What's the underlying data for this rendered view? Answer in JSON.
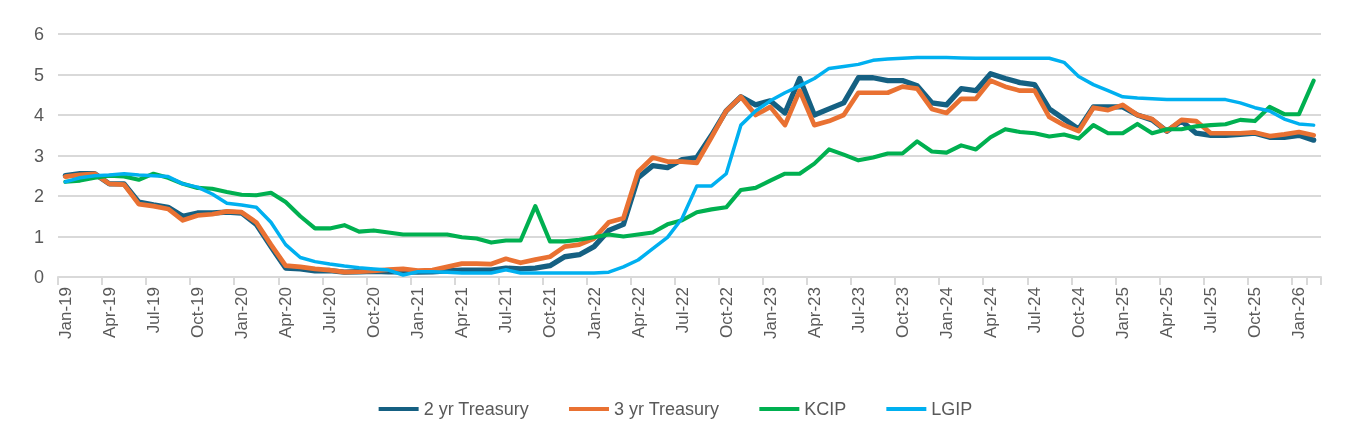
{
  "chart_data": {
    "type": "line",
    "categories": [
      "Jan-19",
      null,
      null,
      "Apr-19",
      null,
      null,
      "Jul-19",
      null,
      null,
      "Oct-19",
      null,
      null,
      "Jan-20",
      null,
      null,
      "Apr-20",
      null,
      null,
      "Jul-20",
      null,
      null,
      "Oct-20",
      null,
      null,
      "Jan-21",
      null,
      null,
      "Apr-21",
      null,
      null,
      "Jul-21",
      null,
      null,
      "Oct-21",
      null,
      null,
      "Jan-22",
      null,
      null,
      "Apr-22",
      null,
      null,
      "Jul-22",
      null,
      null,
      "Oct-22",
      null,
      null,
      "Jan-23",
      null,
      null,
      "Apr-23",
      null,
      null,
      "Jul-23",
      null,
      null,
      "Oct-23",
      null,
      null,
      "Jan-24",
      null,
      null,
      "Apr-24",
      null,
      null,
      "Jul-24",
      null,
      null,
      "Oct-24",
      null,
      null,
      "Jan-25",
      null,
      null,
      "Apr-25",
      null,
      null,
      "Jul-25",
      null,
      null,
      "Oct-25",
      null,
      null,
      "Jan-26",
      null
    ],
    "series": [
      {
        "name": "2 yr Treasury",
        "color": "#156082",
        "values": [
          2.5,
          2.55,
          2.55,
          2.3,
          2.3,
          1.85,
          1.78,
          1.72,
          1.5,
          1.58,
          1.58,
          1.6,
          1.58,
          1.3,
          0.75,
          0.22,
          0.2,
          0.15,
          0.16,
          0.12,
          0.13,
          0.14,
          0.13,
          0.13,
          0.12,
          0.13,
          0.15,
          0.17,
          0.17,
          0.17,
          0.22,
          0.2,
          0.22,
          0.28,
          0.5,
          0.55,
          0.75,
          1.15,
          1.3,
          2.45,
          2.75,
          2.7,
          2.9,
          2.95,
          3.5,
          4.1,
          4.45,
          4.25,
          4.35,
          4.05,
          4.9,
          4.0,
          4.15,
          4.3,
          4.92,
          4.92,
          4.85,
          4.85,
          4.72,
          4.3,
          4.25,
          4.65,
          4.6,
          5.02,
          4.9,
          4.8,
          4.75,
          4.15,
          3.9,
          3.65,
          4.2,
          4.2,
          4.2,
          4.0,
          3.88,
          3.6,
          3.85,
          3.55,
          3.5,
          3.5,
          3.52,
          3.55,
          3.45,
          3.45,
          3.5,
          3.38
        ]
      },
      {
        "name": "3 yr Treasury",
        "color": "#e97132",
        "values": [
          2.48,
          2.52,
          2.55,
          2.3,
          2.28,
          1.8,
          1.75,
          1.68,
          1.4,
          1.52,
          1.55,
          1.62,
          1.6,
          1.35,
          0.8,
          0.28,
          0.25,
          0.2,
          0.17,
          0.12,
          0.13,
          0.15,
          0.18,
          0.2,
          0.16,
          0.17,
          0.25,
          0.33,
          0.33,
          0.32,
          0.45,
          0.35,
          0.43,
          0.5,
          0.75,
          0.8,
          0.95,
          1.35,
          1.45,
          2.6,
          2.95,
          2.85,
          2.85,
          2.82,
          3.45,
          4.1,
          4.45,
          4.0,
          4.2,
          3.75,
          4.6,
          3.75,
          3.85,
          4.0,
          4.55,
          4.55,
          4.55,
          4.7,
          4.65,
          4.15,
          4.05,
          4.4,
          4.4,
          4.85,
          4.7,
          4.6,
          4.6,
          3.95,
          3.75,
          3.6,
          4.18,
          4.12,
          4.25,
          4.0,
          3.9,
          3.6,
          3.88,
          3.85,
          3.55,
          3.55,
          3.55,
          3.57,
          3.48,
          3.52,
          3.58,
          3.5
        ]
      },
      {
        "name": "KCIP",
        "color": "#00b050",
        "values": [
          2.35,
          2.38,
          2.45,
          2.5,
          2.48,
          2.4,
          2.55,
          2.45,
          2.3,
          2.2,
          2.18,
          2.1,
          2.03,
          2.02,
          2.08,
          1.85,
          1.5,
          1.2,
          1.2,
          1.28,
          1.12,
          1.15,
          1.1,
          1.05,
          1.05,
          1.05,
          1.05,
          0.98,
          0.95,
          0.85,
          0.9,
          0.9,
          1.75,
          0.88,
          0.88,
          0.92,
          0.98,
          1.05,
          1.0,
          1.05,
          1.1,
          1.3,
          1.4,
          1.6,
          1.67,
          1.72,
          2.15,
          2.2,
          2.38,
          2.55,
          2.55,
          2.8,
          3.15,
          3.02,
          2.88,
          2.95,
          3.05,
          3.05,
          3.35,
          3.1,
          3.07,
          3.25,
          3.15,
          3.45,
          3.65,
          3.58,
          3.55,
          3.47,
          3.52,
          3.42,
          3.75,
          3.55,
          3.55,
          3.78,
          3.55,
          3.65,
          3.65,
          3.72,
          3.75,
          3.77,
          3.88,
          3.85,
          4.2,
          4.02,
          4.02,
          4.85
        ]
      },
      {
        "name": "LGIP",
        "color": "#00b0f0",
        "values": [
          2.35,
          2.45,
          2.5,
          2.52,
          2.55,
          2.52,
          2.5,
          2.48,
          2.3,
          2.22,
          2.05,
          1.82,
          1.78,
          1.72,
          1.35,
          0.8,
          0.48,
          0.38,
          0.32,
          0.27,
          0.23,
          0.2,
          0.17,
          0.05,
          0.13,
          0.13,
          0.12,
          0.1,
          0.1,
          0.1,
          0.18,
          0.1,
          0.1,
          0.1,
          0.1,
          0.1,
          0.1,
          0.12,
          0.25,
          0.42,
          0.7,
          0.98,
          1.45,
          2.25,
          2.25,
          2.55,
          3.75,
          4.1,
          4.35,
          4.55,
          4.72,
          4.9,
          5.15,
          5.2,
          5.25,
          5.35,
          5.38,
          5.4,
          5.42,
          5.42,
          5.42,
          5.41,
          5.4,
          5.4,
          5.4,
          5.4,
          5.4,
          5.4,
          5.3,
          4.95,
          4.75,
          4.6,
          4.45,
          4.42,
          4.4,
          4.38,
          4.38,
          4.38,
          4.38,
          4.38,
          4.3,
          4.18,
          4.1,
          3.9,
          3.78,
          3.75
        ]
      }
    ],
    "ylim": [
      0,
      6
    ],
    "yticks": [
      0,
      1,
      2,
      3,
      4,
      5,
      6
    ],
    "grid": "y",
    "legend": "bottom",
    "marker": "none",
    "line_style": "solid"
  }
}
